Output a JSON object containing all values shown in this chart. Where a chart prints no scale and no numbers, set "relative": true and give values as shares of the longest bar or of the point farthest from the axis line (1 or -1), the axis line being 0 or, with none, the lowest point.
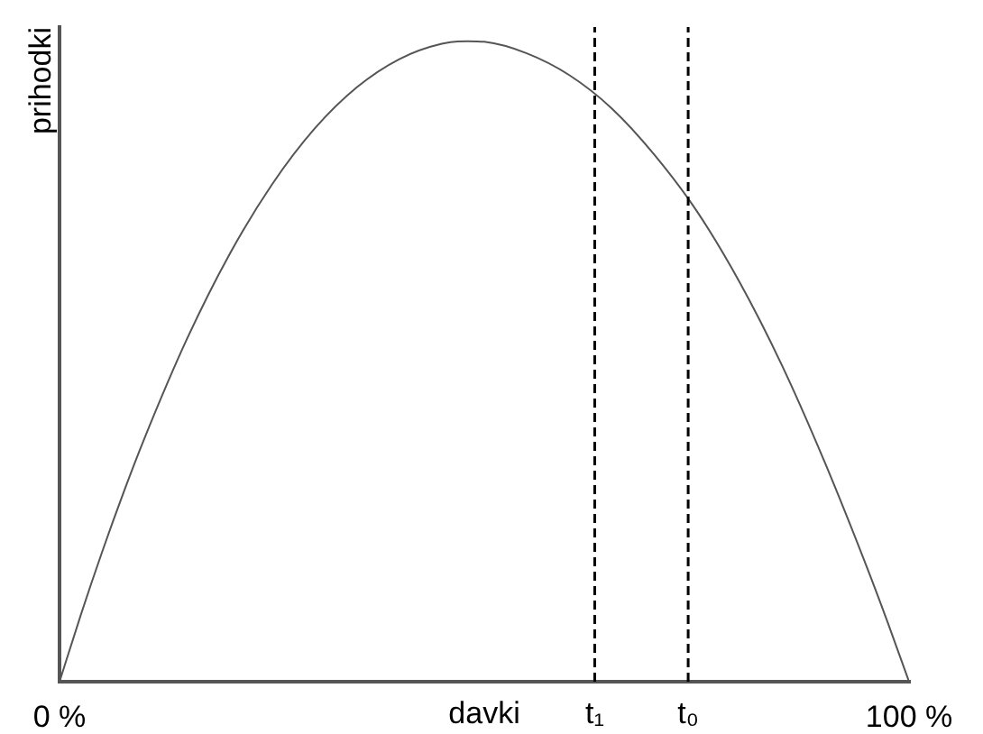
{
  "chart_data": {
    "type": "line",
    "xlabel": "davki",
    "ylabel": "prihodki",
    "x": [
      0,
      2.5,
      5,
      7.5,
      10,
      15,
      20,
      25,
      30,
      35,
      40,
      45,
      48,
      50,
      55,
      60,
      65,
      70,
      75,
      80,
      85,
      90,
      95,
      97.5,
      100
    ],
    "values": [
      0,
      0.104,
      0.202,
      0.294,
      0.38,
      0.535,
      0.667,
      0.776,
      0.863,
      0.928,
      0.972,
      0.996,
      1,
      0.999,
      0.981,
      0.947,
      0.895,
      0.823,
      0.735,
      0.625,
      0.495,
      0.345,
      0.18,
      0.092,
      0
    ],
    "color": "#555555",
    "relative": true,
    "xlim": [
      0,
      100
    ],
    "xticks": [
      {
        "value": 0,
        "label": "0 %"
      },
      {
        "value": 100,
        "label": "100 %"
      }
    ],
    "ref_lines": [
      {
        "axis": "x",
        "value": 63,
        "label": "t₁",
        "line_style": "dashed",
        "color": "#000000"
      },
      {
        "axis": "x",
        "value": 74,
        "label": "t₀",
        "line_style": "dashed",
        "color": "#000000"
      }
    ],
    "grid": false,
    "legend": false,
    "marker": "none",
    "line_style": "solid"
  }
}
